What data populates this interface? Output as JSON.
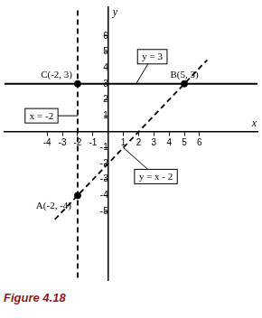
{
  "chart_data": {
    "type": "line",
    "caption": "Figure 4.18",
    "xlabel": "x",
    "ylabel": "y",
    "xlim": [
      -6.8,
      9.8
    ],
    "ylim": [
      -9.3,
      7.8
    ],
    "xticks": [
      -4,
      -3,
      -2,
      -1,
      1,
      2,
      3,
      4,
      5,
      6
    ],
    "yticks": [
      -5,
      -4,
      -3,
      -2,
      -1,
      1,
      2,
      3,
      4,
      5,
      6
    ],
    "grid": false,
    "series": [
      {
        "name": "x = -2",
        "color": "#000000",
        "line_style": "dashed",
        "x": [
          -2,
          -2
        ],
        "values": [
          7.6,
          -9.2
        ]
      },
      {
        "name": "y = 3",
        "color": "#000000",
        "line_style": "solid",
        "x": [
          -6.8,
          9.8
        ],
        "values": [
          3,
          3
        ]
      },
      {
        "name": "y = x - 2",
        "color": "#000000",
        "line_style": "dashed",
        "x": [
          -3.5,
          6.5
        ],
        "values": [
          -5.5,
          4.5
        ]
      }
    ],
    "points": [
      {
        "label": "C(-2, 3)",
        "x": -2,
        "y": 3
      },
      {
        "label": "B(5, 3)",
        "x": 5,
        "y": 3
      },
      {
        "label": "A(-2, -4)",
        "x": -2,
        "y": -4
      }
    ],
    "points_color": "#000000",
    "marker": "circle"
  }
}
